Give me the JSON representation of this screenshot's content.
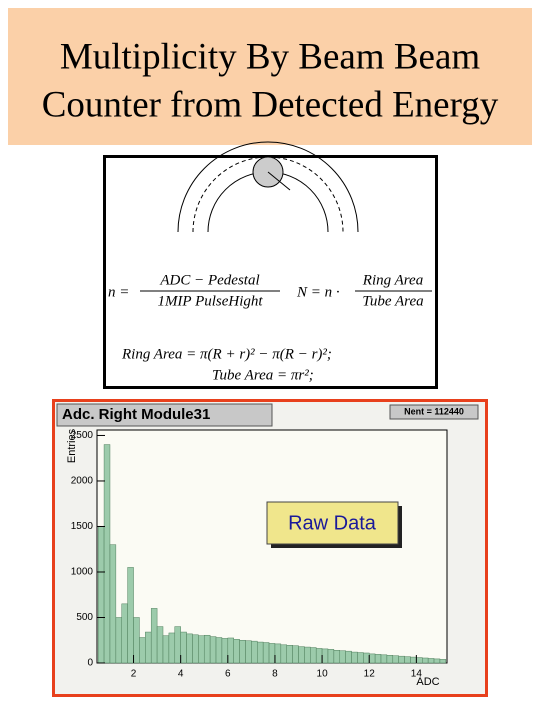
{
  "slide_title": [
    "Multiplicity By Beam Beam",
    "Counter from Detected Energy"
  ],
  "formulas": {
    "n_eq": "n =",
    "n_num": "ADC − Pedestal",
    "n_den": "1MIP PulseHight",
    "big_n_eq": "N = n ·",
    "ring_num": "Ring Area",
    "tube_den": "Tube Area",
    "ring_area": "Ring Area = π(R + r)² − π(R − r)²;",
    "tube_area": "Tube Area = πr²;"
  },
  "chart_data": {
    "type": "histogram",
    "title": "Adc. Right Module31",
    "stats": "Nent = 112440",
    "annotation": "Raw Data",
    "x_label": "ADC",
    "y_label": "Entries",
    "color": "#9ccbab",
    "bins": [
      0.5,
      0.75,
      1.0,
      1.25,
      1.5,
      1.75,
      2.0,
      2.25,
      2.5,
      2.75,
      3.0,
      3.25,
      3.5,
      3.75,
      4.0,
      4.25,
      4.5,
      4.75,
      5.0,
      5.25,
      5.5,
      5.75,
      6.0,
      6.25,
      6.5,
      6.75,
      7.0,
      7.25,
      7.5,
      7.75,
      8.0,
      8.25,
      8.5,
      8.75,
      9.0,
      9.25,
      9.5,
      9.75,
      10.0,
      10.25,
      10.5,
      10.75,
      11.0,
      11.25,
      11.5,
      11.75,
      12.0,
      12.25,
      12.5,
      12.75,
      13.0,
      13.25,
      13.5,
      13.75,
      14.0,
      14.25,
      14.5,
      14.75,
      15.0,
      15.25
    ],
    "values": [
      1500,
      2400,
      1300,
      500,
      650,
      1050,
      500,
      280,
      340,
      600,
      400,
      300,
      330,
      400,
      340,
      320,
      310,
      300,
      305,
      290,
      280,
      270,
      275,
      260,
      250,
      245,
      240,
      230,
      225,
      215,
      210,
      200,
      195,
      190,
      180,
      175,
      170,
      160,
      155,
      150,
      140,
      135,
      130,
      120,
      115,
      110,
      100,
      95,
      90,
      85,
      80,
      75,
      70,
      65,
      60,
      55,
      50,
      45,
      40
    ],
    "xlim": [
      0.45,
      15.3
    ],
    "ylim": [
      0,
      2560
    ],
    "xticks": [
      2,
      4,
      6,
      8,
      10,
      12,
      14
    ],
    "yticks": [
      0,
      500,
      1000,
      1500,
      2000,
      2500
    ]
  }
}
